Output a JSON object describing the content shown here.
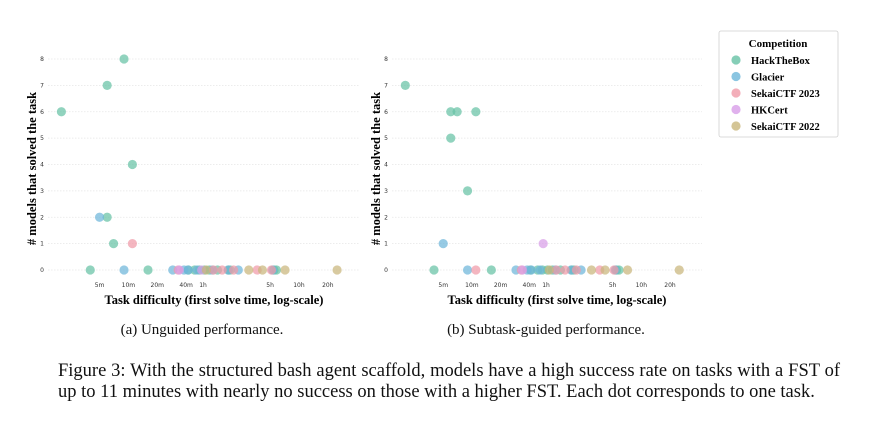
{
  "figure": {
    "caption": "Figure 3: With the structured bash agent scaffold, models have a high success rate on tasks with a FST of up to 11 minutes with nearly no success on those with a higher FST. Each dot corresponds to one task.",
    "legend": {
      "title": "Competition",
      "position": "top-right",
      "entries": [
        {
          "name": "HackTheBox",
          "color": "#66c2a5"
        },
        {
          "name": "Glacier",
          "color": "#6db6d9"
        },
        {
          "name": "SekaiCTF 2023",
          "color": "#f09aa8"
        },
        {
          "name": "HKCert",
          "color": "#d89ee8"
        },
        {
          "name": "SekaiCTF 2022",
          "color": "#c9b67c"
        }
      ]
    }
  },
  "chart_data": [
    {
      "type": "scatter",
      "subtitle": "(a) Unguided performance.",
      "xlabel": "Task difficulty (first solve time, log-scale)",
      "ylabel": "# models that solved the task",
      "xscale": "log",
      "xunit": "minutes",
      "xticks": [
        {
          "label": "5m",
          "value": 5
        },
        {
          "label": "10m",
          "value": 10
        },
        {
          "label": "20m",
          "value": 20
        },
        {
          "label": "40m",
          "value": 40
        },
        {
          "label": "1h",
          "value": 60
        },
        {
          "label": "5h",
          "value": 300
        },
        {
          "label": "10h",
          "value": 600
        },
        {
          "label": "20h",
          "value": 1200
        }
      ],
      "yticks": [
        0,
        1,
        2,
        3,
        4,
        5,
        6,
        7,
        8
      ],
      "ylim": [
        0,
        8
      ],
      "grid": "horizontal",
      "series": [
        {
          "name": "HackTheBox",
          "points": [
            [
              2,
              6
            ],
            [
              4,
              0
            ],
            [
              6,
              7
            ],
            [
              6,
              2
            ],
            [
              7,
              1
            ],
            [
              9,
              8
            ],
            [
              11,
              4
            ],
            [
              16,
              0
            ],
            [
              42,
              0
            ],
            [
              49,
              0
            ],
            [
              55,
              0
            ],
            [
              62,
              0
            ],
            [
              70,
              0
            ],
            [
              85,
              0
            ],
            [
              110,
              0
            ],
            [
              115,
              0
            ],
            [
              330,
              0
            ],
            [
              350,
              0
            ]
          ]
        },
        {
          "name": "Glacier",
          "points": [
            [
              5,
              2
            ],
            [
              9,
              0
            ],
            [
              29,
              0
            ],
            [
              38,
              0
            ],
            [
              42,
              0
            ],
            [
              52,
              0
            ],
            [
              75,
              0
            ],
            [
              110,
              0
            ],
            [
              140,
              0
            ],
            [
              320,
              0
            ]
          ]
        },
        {
          "name": "SekaiCTF 2023",
          "points": [
            [
              11,
              1
            ],
            [
              33,
              0
            ],
            [
              77,
              0
            ],
            [
              95,
              0
            ],
            [
              125,
              0
            ],
            [
              220,
              0
            ],
            [
              310,
              0
            ]
          ]
        },
        {
          "name": "HKCert",
          "points": [
            [
              34,
              0
            ],
            [
              58,
              0
            ]
          ]
        },
        {
          "name": "SekaiCTF 2022",
          "points": [
            [
              65,
              0
            ],
            [
              180,
              0
            ],
            [
              250,
              0
            ],
            [
              430,
              0
            ],
            [
              1500,
              0
            ]
          ]
        }
      ]
    },
    {
      "type": "scatter",
      "subtitle": "(b) Subtask-guided performance.",
      "xlabel": "Task difficulty (first solve time, log-scale)",
      "ylabel": "# models that solved the task",
      "xscale": "log",
      "xunit": "minutes",
      "xticks": [
        {
          "label": "5m",
          "value": 5
        },
        {
          "label": "10m",
          "value": 10
        },
        {
          "label": "20m",
          "value": 20
        },
        {
          "label": "40m",
          "value": 40
        },
        {
          "label": "1h",
          "value": 60
        },
        {
          "label": "5h",
          "value": 300
        },
        {
          "label": "10h",
          "value": 600
        },
        {
          "label": "20h",
          "value": 1200
        }
      ],
      "yticks": [
        0,
        1,
        2,
        3,
        4,
        5,
        6,
        7,
        8
      ],
      "ylim": [
        0,
        8
      ],
      "grid": "horizontal",
      "series": [
        {
          "name": "HackTheBox",
          "points": [
            [
              2,
              7
            ],
            [
              4,
              0
            ],
            [
              6,
              6
            ],
            [
              6,
              5
            ],
            [
              7,
              6
            ],
            [
              9,
              3
            ],
            [
              11,
              6
            ],
            [
              16,
              0
            ],
            [
              41,
              0
            ],
            [
              49,
              0
            ],
            [
              55,
              0
            ],
            [
              62,
              0
            ],
            [
              70,
              0
            ],
            [
              85,
              0
            ],
            [
              112,
              0
            ],
            [
              118,
              0
            ],
            [
              330,
              0
            ],
            [
              350,
              0
            ]
          ]
        },
        {
          "name": "Glacier",
          "points": [
            [
              5,
              1
            ],
            [
              9,
              0
            ],
            [
              29,
              0
            ],
            [
              38,
              0
            ],
            [
              42,
              0
            ],
            [
              52,
              0
            ],
            [
              75,
              0
            ],
            [
              110,
              0
            ],
            [
              140,
              0
            ],
            [
              320,
              0
            ]
          ]
        },
        {
          "name": "SekaiCTF 2023",
          "points": [
            [
              11,
              0
            ],
            [
              33,
              0
            ],
            [
              77,
              0
            ],
            [
              95,
              0
            ],
            [
              125,
              0
            ],
            [
              220,
              0
            ],
            [
              310,
              0
            ]
          ]
        },
        {
          "name": "HKCert",
          "points": [
            [
              34,
              0
            ],
            [
              56,
              1
            ]
          ]
        },
        {
          "name": "SekaiCTF 2022",
          "points": [
            [
              65,
              0
            ],
            [
              180,
              0
            ],
            [
              250,
              0
            ],
            [
              430,
              0
            ],
            [
              1500,
              0
            ]
          ]
        }
      ]
    }
  ]
}
